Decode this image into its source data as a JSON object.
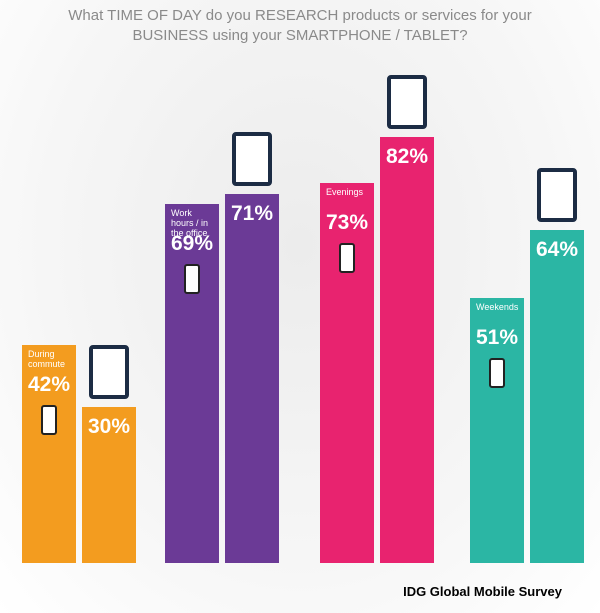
{
  "chart_data": {
    "type": "bar",
    "title": "What TIME OF DAY do you RESEARCH products or services for your BUSINESS using your SMARTPHONE / TABLET?",
    "categories": [
      "During commute",
      "Work hours / in the office",
      "Evenings",
      "Weekends"
    ],
    "colors": [
      "#f39c1f",
      "#6b3a96",
      "#e8236f",
      "#2bb6a4"
    ],
    "series": [
      {
        "values": [
          42,
          69,
          73,
          51
        ],
        "value_labels": [
          "42%",
          "69%",
          "73%",
          "51%"
        ]
      },
      {
        "values": [
          30,
          71,
          82,
          64
        ],
        "value_labels": [
          "30%",
          "71%",
          "82%",
          "64%"
        ]
      }
    ],
    "ylim": [
      0,
      85
    ],
    "source": "IDG Global Mobile Survey"
  }
}
